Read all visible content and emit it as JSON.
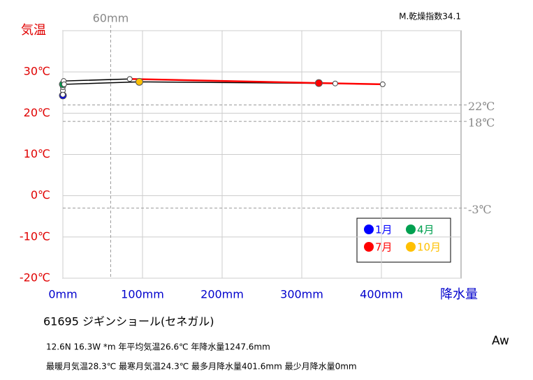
{
  "chart_data": {
    "type": "hythergraph",
    "index_label": "M.乾燥指数34.1",
    "y_label": "気温",
    "x_label": "降水量",
    "station": "61695  ジギンショール(セネガル)",
    "info": [
      "12.6N  16.3W *m  年平均気温26.6℃ 年降水量1247.6mm",
      "最暖月気温28.3℃ 最寒月気温24.3℃ 最多月降水量401.6mm 最少月降水量0mm"
    ],
    "climate": "Aw",
    "xlim": [
      0,
      500
    ],
    "ylim": [
      -20,
      40
    ],
    "xticks": [
      {
        "value": 0,
        "label": "0mm"
      },
      {
        "value": 100,
        "label": "100mm"
      },
      {
        "value": 200,
        "label": "200mm"
      },
      {
        "value": 300,
        "label": "300mm"
      },
      {
        "value": 400,
        "label": "400mm"
      }
    ],
    "yticks": [
      {
        "value": -20,
        "label": "-20℃"
      },
      {
        "value": -10,
        "label": "-10℃"
      },
      {
        "value": 0,
        "label": "0℃"
      },
      {
        "value": 10,
        "label": "10℃"
      },
      {
        "value": 20,
        "label": "20℃"
      },
      {
        "value": 30,
        "label": "30℃"
      },
      40
    ],
    "y_ref_lines": [
      {
        "value": 22,
        "label": "22℃"
      },
      {
        "value": 18,
        "label": "18℃"
      },
      {
        "value": -3,
        "label": "-3℃"
      }
    ],
    "x_ref_lines": [
      {
        "value": 60,
        "label": "60mm"
      }
    ],
    "x": [
      0,
      0,
      0,
      0,
      1,
      84,
      321.4,
      401.6,
      342,
      96,
      1.6,
      0
    ],
    "series": [
      {
        "color": "#000000",
        "values": [
          24.3,
          25.5,
          26.3,
          27.0,
          27.8,
          28.3,
          27.3,
          27.0,
          27.2,
          27.6,
          27.0,
          24.5
        ],
        "point_colors": [
          "#0000ff",
          null,
          null,
          "#00a050",
          null,
          null,
          "#ff0000",
          null,
          null,
          "#ffc000",
          null,
          null
        ]
      }
    ],
    "highlight_line_color": "#ff0000",
    "legend": [
      {
        "name": "1月",
        "color": "#0000ff"
      },
      {
        "name": "4月",
        "color": "#00a050"
      },
      {
        "name": "7月",
        "color": "#ff0000"
      },
      {
        "name": "10月",
        "color": "#ffc000"
      }
    ]
  }
}
